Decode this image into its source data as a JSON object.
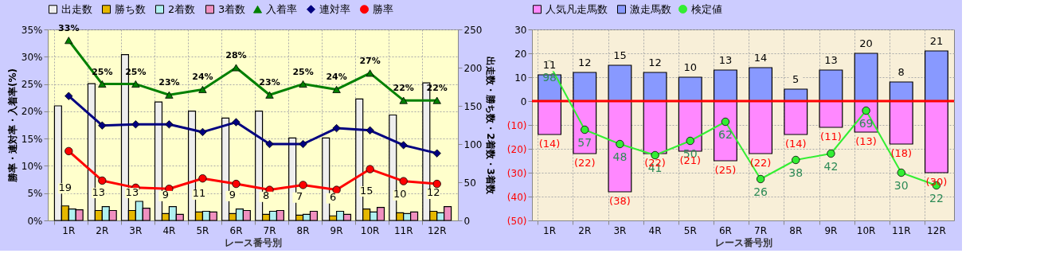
{
  "chart_data": [
    {
      "type": "bar",
      "xlabel": "レース番号別",
      "ylabel": "勝率・連対率・入着率(%)",
      "y2label": "出走数・勝ち数・2着数・3着数",
      "categories": [
        "1R",
        "2R",
        "3R",
        "4R",
        "5R",
        "6R",
        "7R",
        "8R",
        "9R",
        "10R",
        "11R",
        "12R"
      ],
      "ylim": [
        0,
        35
      ],
      "yticks": [
        {
          "value": 0,
          "label": "0%"
        },
        {
          "value": 5,
          "label": "5%"
        },
        {
          "value": 10,
          "label": "10%"
        },
        {
          "value": 15,
          "label": "15%"
        },
        {
          "value": 20,
          "label": "20%"
        },
        {
          "value": 25,
          "label": "25%"
        },
        {
          "value": 30,
          "label": "30%"
        },
        {
          "value": 35,
          "label": "35%"
        }
      ],
      "y2lim": [
        0,
        250
      ],
      "y2ticks": [
        0,
        50,
        100,
        150,
        200,
        250
      ],
      "grid": true,
      "legend": "top",
      "series": [
        {
          "name": "出走数",
          "type": "bar",
          "axis": "y2",
          "color": "#eeeeee",
          "values": [
            150,
            179,
            217,
            155,
            143,
            134,
            143,
            108,
            108,
            159,
            138,
            180
          ]
        },
        {
          "name": "勝ち数",
          "type": "bar",
          "axis": "y2",
          "color": "#e6b800",
          "values": [
            19,
            13,
            13,
            9,
            11,
            9,
            8,
            7,
            6,
            15,
            10,
            12
          ],
          "value_labels": [
            "19",
            "13",
            "13",
            "9",
            "11",
            "9",
            "8",
            "7",
            "6",
            "15",
            "10",
            "12"
          ]
        },
        {
          "name": "2着数",
          "type": "bar",
          "axis": "y2",
          "color": "#b0f0f0",
          "values": [
            15,
            18,
            25,
            18,
            12,
            15,
            12,
            8,
            12,
            11,
            9,
            10
          ]
        },
        {
          "name": "3着数",
          "type": "bar",
          "axis": "y2",
          "color": "#f090c0",
          "values": [
            14,
            13,
            16,
            8,
            11,
            13,
            13,
            12,
            8,
            17,
            11,
            18
          ]
        },
        {
          "name": "入着率",
          "type": "line",
          "axis": "y",
          "color": "#008000",
          "marker": "triangle",
          "values": [
            33,
            25,
            25,
            23,
            24,
            28,
            23,
            25,
            24,
            27,
            22,
            22
          ],
          "value_labels": [
            "33%",
            "25%",
            "25%",
            "23%",
            "24%",
            "28%",
            "23%",
            "25%",
            "24%",
            "27%",
            "22%",
            "22%"
          ]
        },
        {
          "name": "連対率",
          "type": "line",
          "axis": "y",
          "color": "#000080",
          "marker": "diamond",
          "values": [
            22.8,
            17.4,
            17.6,
            17.6,
            16.2,
            18.0,
            14.0,
            14.0,
            16.9,
            16.5,
            13.8,
            12.3
          ]
        },
        {
          "name": "勝率",
          "type": "line",
          "axis": "y",
          "color": "#ff0000",
          "marker": "circle",
          "values": [
            12.7,
            7.3,
            6.0,
            5.8,
            7.7,
            6.7,
            5.6,
            6.5,
            5.6,
            9.4,
            7.2,
            6.7
          ]
        }
      ]
    },
    {
      "type": "bar",
      "stacked": true,
      "xlabel": "レース番号別",
      "categories": [
        "1R",
        "2R",
        "3R",
        "4R",
        "5R",
        "6R",
        "7R",
        "8R",
        "9R",
        "10R",
        "11R",
        "12R"
      ],
      "ylim": [
        -50,
        30
      ],
      "yticks": [
        {
          "value": -50,
          "label": "(50)"
        },
        {
          "value": -40,
          "label": "(40)"
        },
        {
          "value": -30,
          "label": "(30)"
        },
        {
          "value": -20,
          "label": "(20)"
        },
        {
          "value": -10,
          "label": "(10)"
        },
        0,
        10,
        20,
        30
      ],
      "y2lim": [
        0,
        120
      ],
      "grid": true,
      "legend": "top",
      "ref_lines": [
        {
          "axis": "y",
          "value": 0,
          "color": "#ff0000"
        }
      ],
      "series": [
        {
          "name": "人気凡走馬数",
          "type": "bar",
          "color": "#ff88ff",
          "values": [
            -14,
            -22,
            -38,
            -22,
            -21,
            -25,
            -22,
            -14,
            -11,
            -13,
            -18,
            -30
          ],
          "value_labels": [
            "(14)",
            "(22)",
            "(38)",
            "(22)",
            "(21)",
            "(25)",
            "(22)",
            "(14)",
            "(11)",
            "(13)",
            "(18)",
            "(30)"
          ]
        },
        {
          "name": "激走馬数",
          "type": "bar",
          "color": "#8899ff",
          "values": [
            11,
            12,
            15,
            12,
            10,
            13,
            14,
            5,
            13,
            20,
            8,
            21
          ],
          "value_labels": [
            "11",
            "12",
            "15",
            "12",
            "10",
            "13",
            "14",
            "5",
            "13",
            "20",
            "8",
            "21"
          ]
        },
        {
          "name": "検定値",
          "type": "line",
          "axis": "y2",
          "color": "#33ee33",
          "marker": "circle",
          "values": [
            98,
            57,
            48,
            41,
            50,
            62,
            26,
            38,
            42,
            69,
            30,
            22
          ],
          "value_labels": [
            "98",
            "57",
            "48",
            "41",
            "50",
            "62",
            "26",
            "38",
            "42",
            "69",
            "30",
            "22"
          ]
        }
      ]
    }
  ]
}
